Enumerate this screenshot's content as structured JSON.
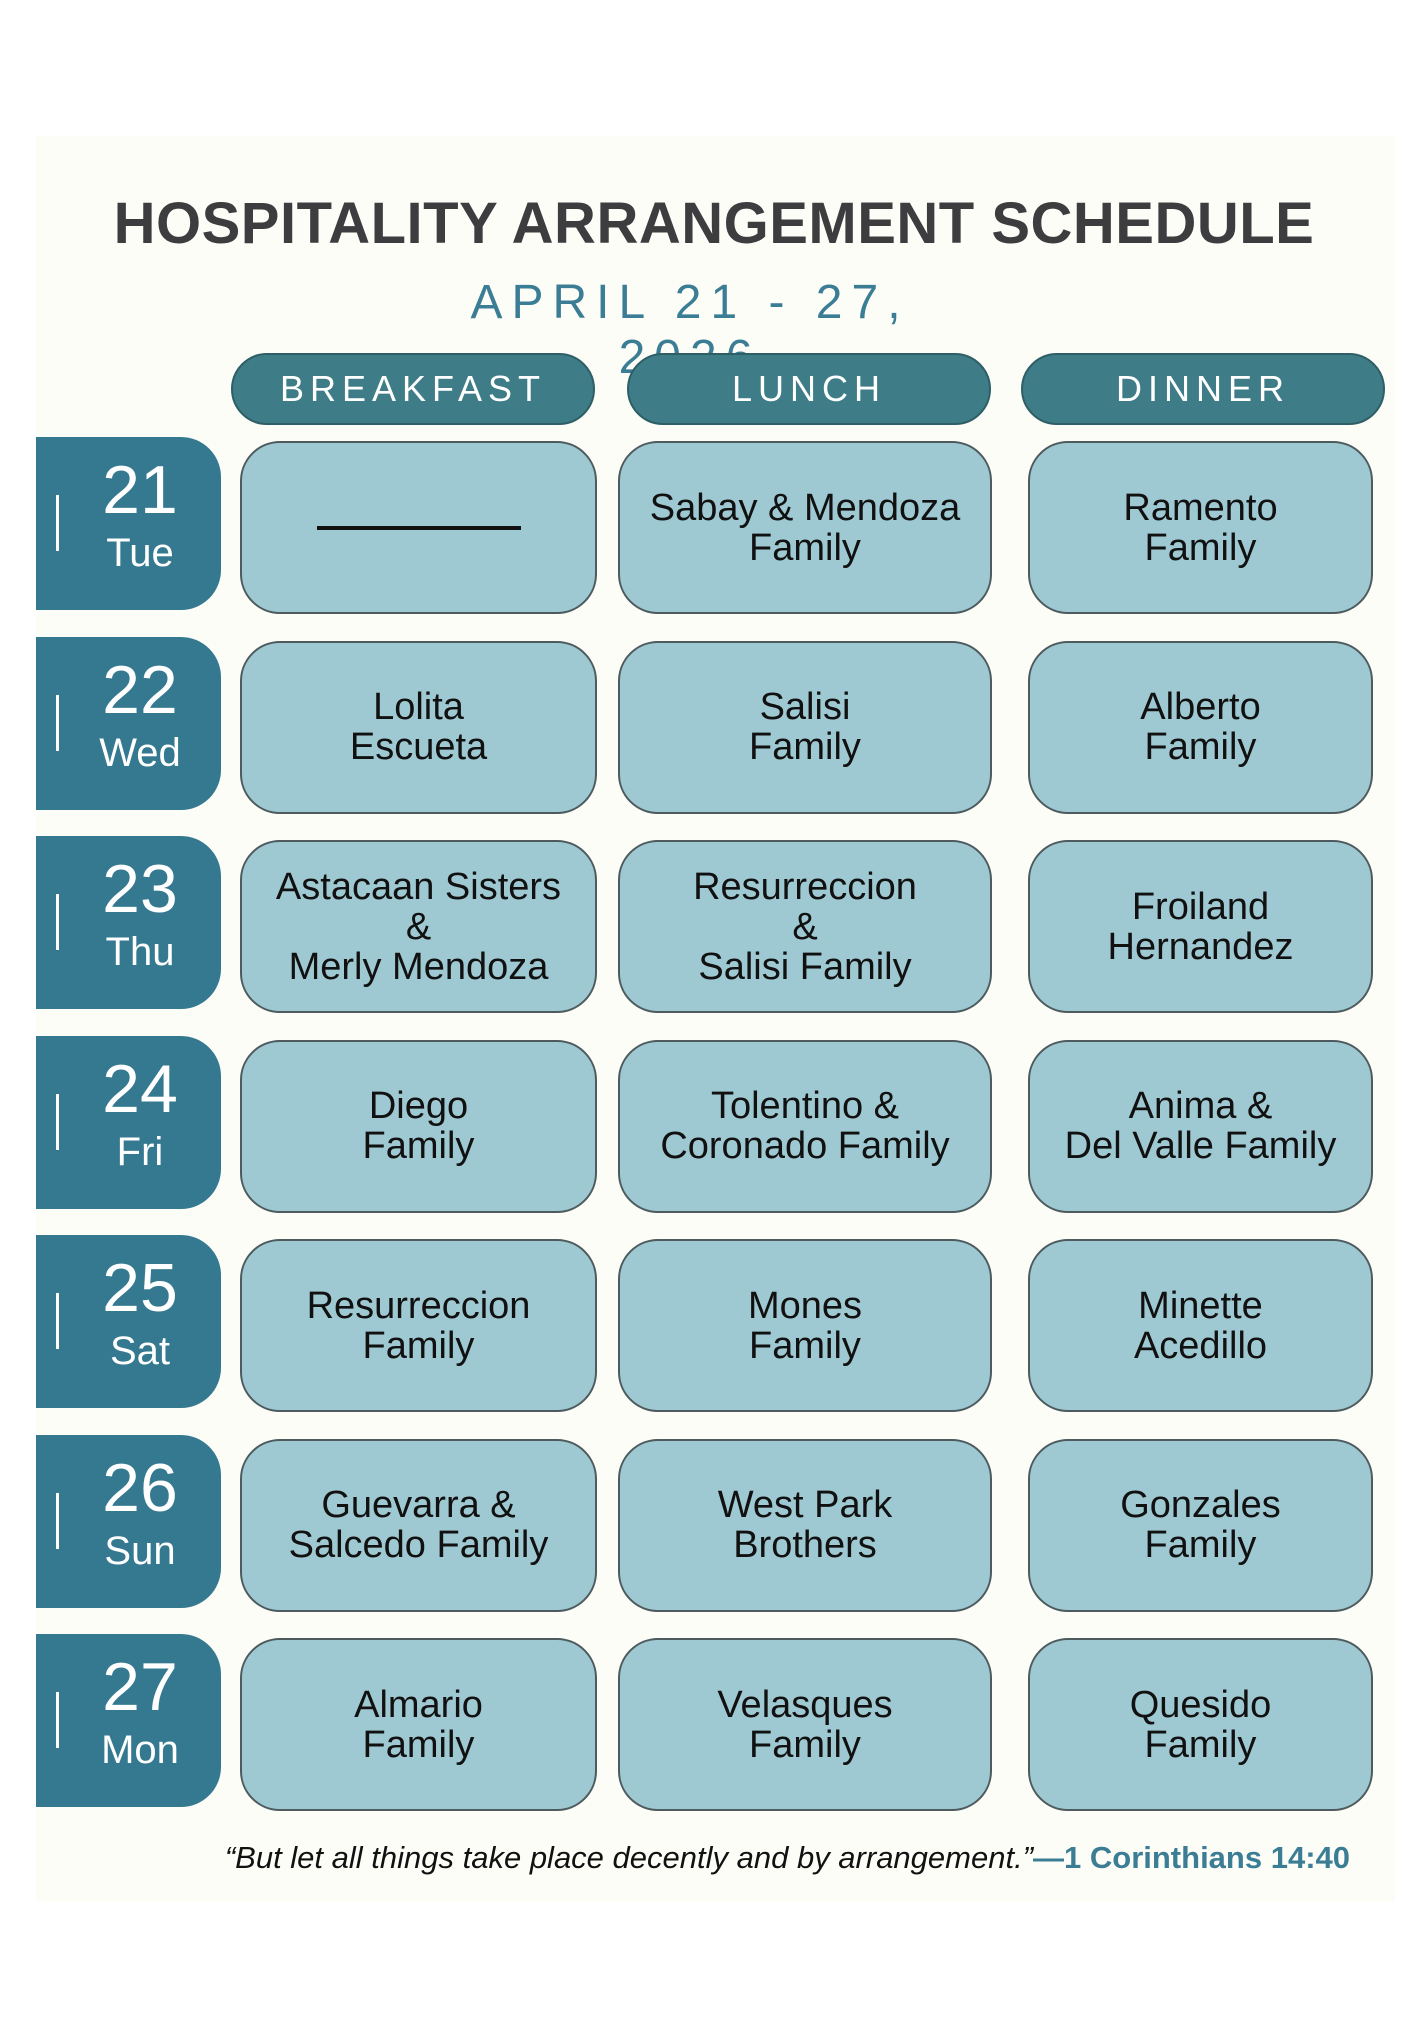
{
  "title": "HOSPITALITY ARRANGEMENT SCHEDULE",
  "subtitle": "APRIL 21 - 27, 2026",
  "meals": [
    "BREAKFAST",
    "LUNCH",
    "DINNER"
  ],
  "colors": {
    "header": "#3e7d88",
    "day_tab": "#357990",
    "cell": "#9fc9d2",
    "accent_text": "#3b7d94"
  },
  "rows": [
    {
      "day": "21",
      "weekday": "Tue",
      "breakfast": "",
      "lunch": "Sabay & Mendoza\nFamily",
      "dinner": "Ramento\nFamily"
    },
    {
      "day": "22",
      "weekday": "Wed",
      "breakfast": "Lolita\nEscueta",
      "lunch": "Salisi\nFamily",
      "dinner": "Alberto\nFamily"
    },
    {
      "day": "23",
      "weekday": "Thu",
      "breakfast": "Astacaan Sisters\n&\nMerly Mendoza",
      "lunch": "Resurreccion\n&\nSalisi Family",
      "dinner": "Froiland\nHernandez"
    },
    {
      "day": "24",
      "weekday": "Fri",
      "breakfast": "Diego\nFamily",
      "lunch": "Tolentino &\nCoronado Family",
      "dinner": "Anima &\nDel Valle Family"
    },
    {
      "day": "25",
      "weekday": "Sat",
      "breakfast": "Resurreccion\nFamily",
      "lunch": "Mones\nFamily",
      "dinner": "Minette\nAcedillo"
    },
    {
      "day": "26",
      "weekday": "Sun",
      "breakfast": "Guevarra &\nSalcedo Family",
      "lunch": "West Park\nBrothers",
      "dinner": "Gonzales\nFamily"
    },
    {
      "day": "27",
      "weekday": "Mon",
      "breakfast": "Almario\nFamily",
      "lunch": "Velasques\nFamily",
      "dinner": "Quesido\nFamily"
    }
  ],
  "quote": {
    "text": "“But let all things take place decently and by arrangement.”",
    "reference": "—1 Corinthians 14:40"
  }
}
